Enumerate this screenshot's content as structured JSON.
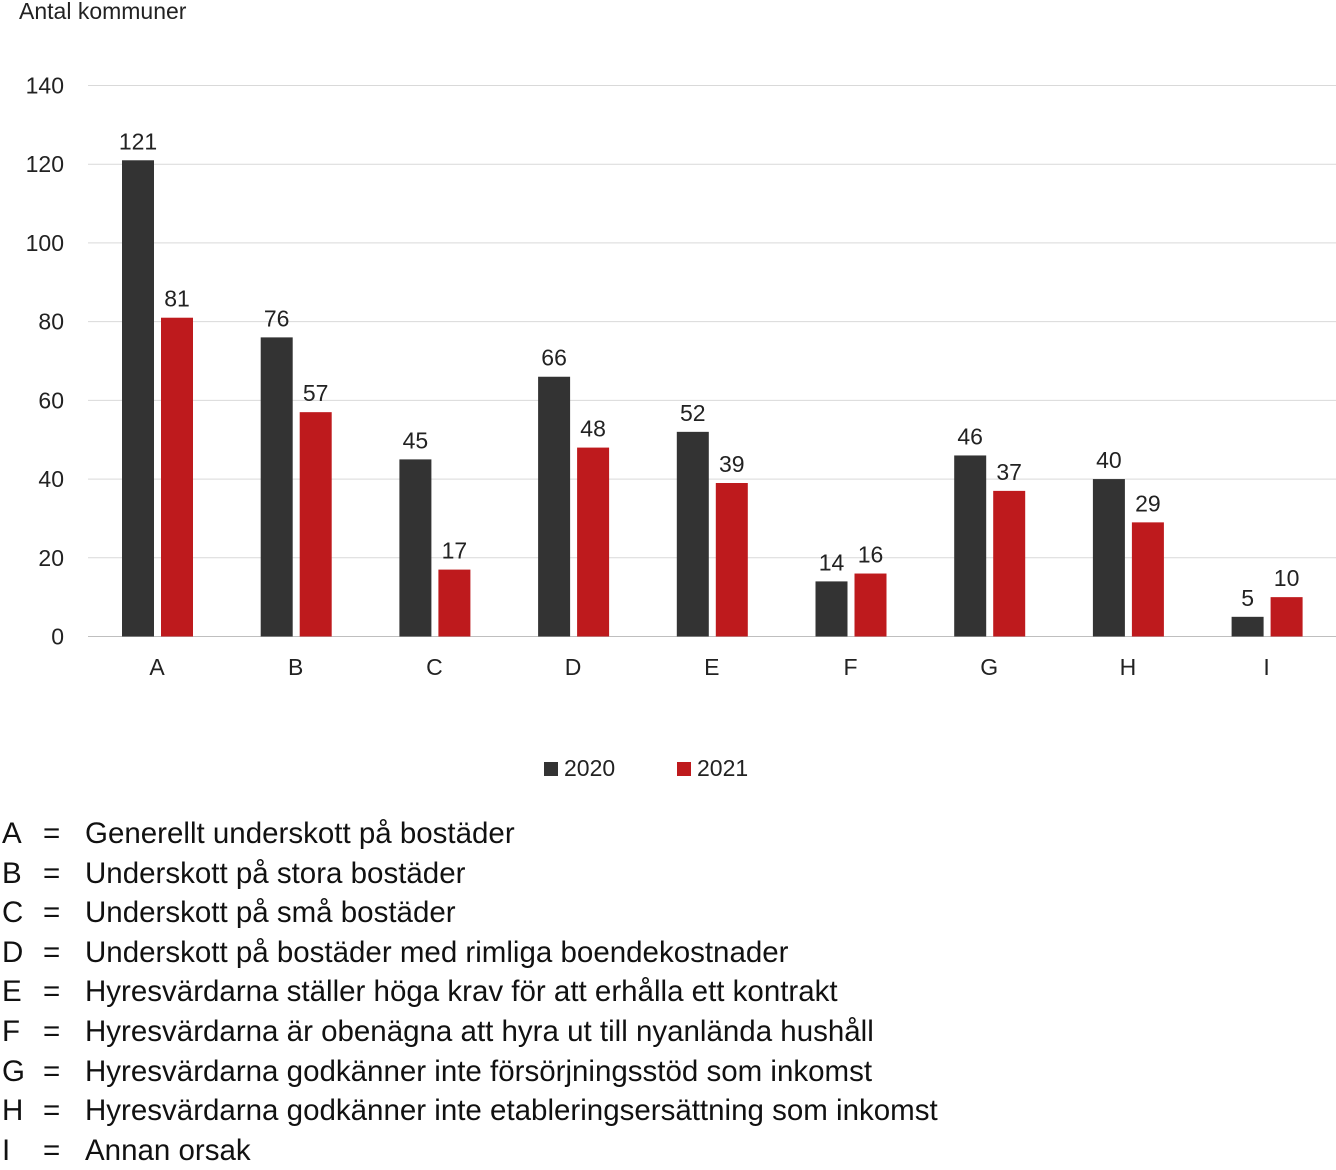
{
  "chart_data": {
    "type": "bar",
    "ylabel": "Antal kommuner",
    "ylim": [
      0,
      140
    ],
    "yticks": [
      0,
      20,
      40,
      60,
      80,
      100,
      120,
      140
    ],
    "grid": true,
    "categories": [
      "A",
      "B",
      "C",
      "D",
      "E",
      "F",
      "G",
      "H",
      "I"
    ],
    "series": [
      {
        "name": "2020",
        "color": "#333333",
        "values": [
          121,
          76,
          45,
          66,
          52,
          14,
          46,
          40,
          5
        ]
      },
      {
        "name": "2021",
        "color": "#be1a1d",
        "values": [
          81,
          57,
          17,
          48,
          39,
          16,
          37,
          29,
          10
        ]
      }
    ],
    "legend_position": "bottom"
  },
  "key": [
    {
      "letter": "A",
      "eq": "=",
      "text": "Generellt underskott på bostäder"
    },
    {
      "letter": "B",
      "eq": "=",
      "text": "Underskott på stora bostäder"
    },
    {
      "letter": "C",
      "eq": "=",
      "text": "Underskott på små bostäder"
    },
    {
      "letter": "D",
      "eq": "=",
      "text": "Underskott på bostäder med rimliga boendekostnader"
    },
    {
      "letter": "E",
      "eq": "=",
      "text": "Hyresvärdarna ställer höga krav för att erhålla ett kontrakt"
    },
    {
      "letter": "F",
      "eq": "=",
      "text": "Hyresvärdarna är obenägna att hyra ut till nyanlända hushåll"
    },
    {
      "letter": "G",
      "eq": "=",
      "text": "Hyresvärdarna godkänner inte försörjningsstöd som inkomst"
    },
    {
      "letter": "H",
      "eq": "=",
      "text": "Hyresvärdarna godkänner inte etableringsersättning som inkomst"
    },
    {
      "letter": "I",
      "eq": "=",
      "text": "Annan orsak"
    }
  ]
}
